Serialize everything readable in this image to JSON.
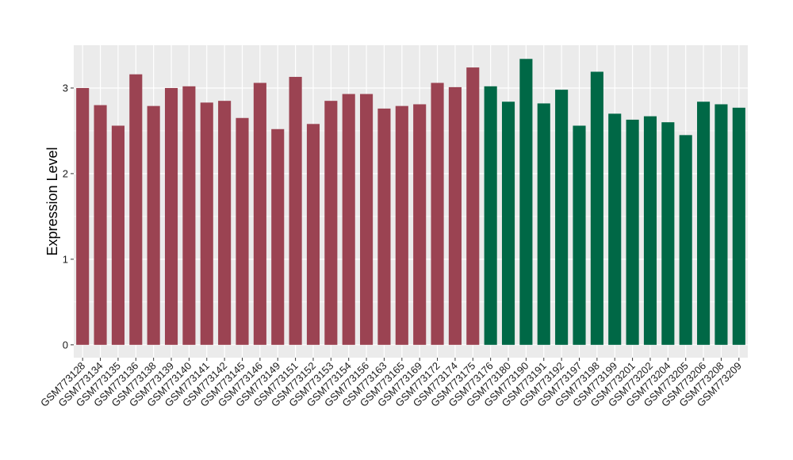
{
  "chart_data": {
    "type": "bar",
    "title": "",
    "xlabel": "",
    "ylabel": "Expression Level",
    "ylim": [
      -0.15,
      3.5
    ],
    "yticks": [
      0,
      1,
      2,
      3
    ],
    "grid": true,
    "colors": {
      "group_1": "#9b4352",
      "group_2": "#006846",
      "panel_bg": "#ebebeb",
      "grid": "#ffffff"
    },
    "categories": [
      "GSM773128",
      "GSM773134",
      "GSM773135",
      "GSM773136",
      "GSM773138",
      "GSM773139",
      "GSM773140",
      "GSM773141",
      "GSM773142",
      "GSM773145",
      "GSM773146",
      "GSM773149",
      "GSM773151",
      "GSM773152",
      "GSM773153",
      "GSM773154",
      "GSM773156",
      "GSM773163",
      "GSM773165",
      "GSM773169",
      "GSM773172",
      "GSM773174",
      "GSM773175",
      "GSM773176",
      "GSM773180",
      "GSM773190",
      "GSM773191",
      "GSM773192",
      "GSM773197",
      "GSM773198",
      "GSM773199",
      "GSM773201",
      "GSM773202",
      "GSM773204",
      "GSM773205",
      "GSM773206",
      "GSM773208",
      "GSM773209"
    ],
    "values": [
      3.0,
      2.8,
      2.56,
      3.16,
      2.79,
      3.0,
      3.02,
      2.83,
      2.85,
      2.65,
      3.06,
      2.52,
      3.13,
      2.58,
      2.85,
      2.93,
      2.93,
      2.76,
      2.79,
      2.81,
      3.06,
      3.01,
      3.24,
      3.02,
      2.84,
      3.34,
      2.82,
      2.98,
      2.56,
      3.19,
      2.7,
      2.63,
      2.67,
      2.6,
      2.45,
      2.84,
      2.81,
      2.77
    ],
    "group": [
      1,
      1,
      1,
      1,
      1,
      1,
      1,
      1,
      1,
      1,
      1,
      1,
      1,
      1,
      1,
      1,
      1,
      1,
      1,
      1,
      1,
      1,
      1,
      2,
      2,
      2,
      2,
      2,
      2,
      2,
      2,
      2,
      2,
      2,
      2,
      2,
      2,
      2
    ]
  }
}
